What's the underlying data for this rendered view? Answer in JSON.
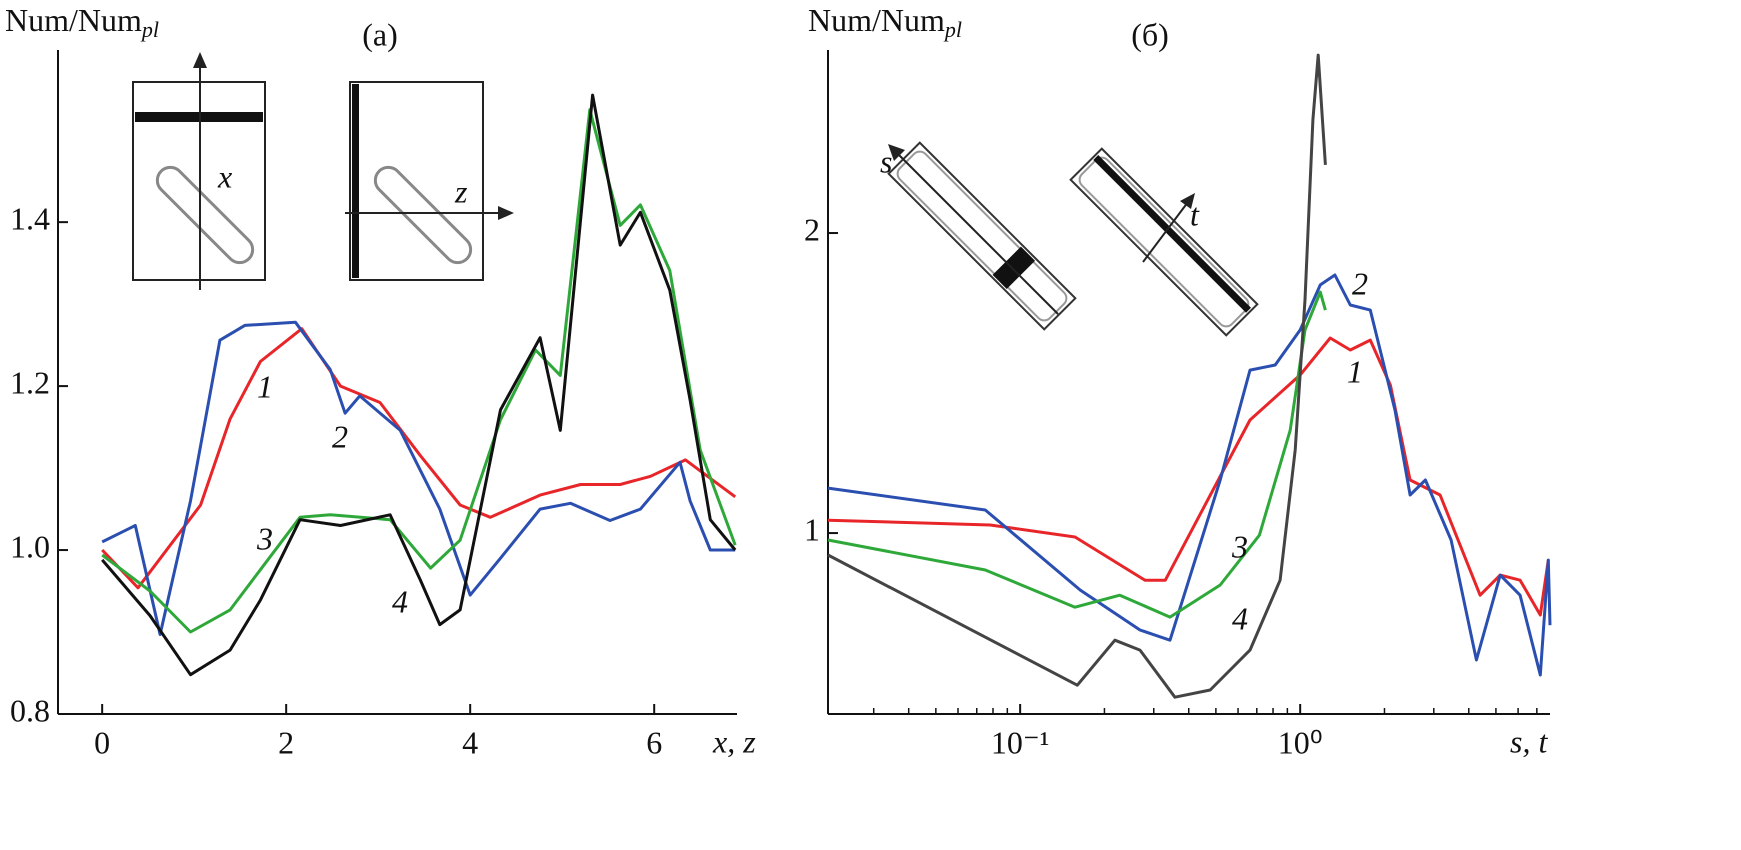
{
  "chart_data": [
    {
      "type": "line",
      "title": "(a)",
      "y_label": "Num/Num",
      "y_label_sub": "pl",
      "x_label": "x, z",
      "xlim": [
        -0.48,
        6.9
      ],
      "ylim": [
        0.8,
        1.61
      ],
      "xticks": [
        0,
        2,
        4,
        6
      ],
      "yticks": [
        0.8,
        {
          "value": 1,
          "label": "1.0"
        },
        1.2,
        1.4
      ],
      "inset_labels": [
        "x",
        "z"
      ],
      "series": [
        {
          "name": "1",
          "color": "#e8262a",
          "x": [
            0,
            0.39,
            1.07,
            1.39,
            1.72,
            2.17,
            2.59,
            3.02,
            3.46,
            3.89,
            4.22,
            4.76,
            5.2,
            5.63,
            5.96,
            6.34,
            6.88
          ],
          "values": [
            1.0,
            0.954,
            1.055,
            1.16,
            1.23,
            1.27,
            1.2,
            1.18,
            1.115,
            1.055,
            1.04,
            1.067,
            1.08,
            1.08,
            1.09,
            1.11,
            1.065
          ]
        },
        {
          "name": "2",
          "color": "#2b4fb0",
          "x": [
            0,
            0.36,
            0.63,
            0.96,
            1.28,
            1.55,
            2.1,
            2.48,
            2.64,
            2.8,
            3.24,
            3.67,
            4.0,
            4.33,
            4.76,
            5.09,
            5.52,
            5.85,
            6.28,
            6.39,
            6.61,
            6.88
          ],
          "values": [
            1.01,
            1.03,
            0.897,
            1.06,
            1.256,
            1.274,
            1.278,
            1.22,
            1.167,
            1.188,
            1.146,
            1.05,
            0.945,
            0.99,
            1.05,
            1.057,
            1.036,
            1.05,
            1.107,
            1.06,
            1.0,
            1.0
          ]
        },
        {
          "name": "3",
          "color": "#2fa83a",
          "x": [
            0,
            0.52,
            0.96,
            1.39,
            1.72,
            2.15,
            2.48,
            3.13,
            3.57,
            3.89,
            4.33,
            4.71,
            4.98,
            5.3,
            5.63,
            5.85,
            6.17,
            6.5,
            6.88
          ],
          "values": [
            0.994,
            0.95,
            0.9,
            0.927,
            0.976,
            1.04,
            1.043,
            1.037,
            0.978,
            1.012,
            1.159,
            1.244,
            1.213,
            1.537,
            1.396,
            1.421,
            1.341,
            1.122,
            1.006
          ]
        },
        {
          "name": "4",
          "color": "#111111",
          "x": [
            0,
            0.52,
            0.96,
            1.39,
            1.72,
            2.15,
            2.59,
            3.13,
            3.46,
            3.67,
            3.89,
            4.33,
            4.76,
            4.98,
            5.33,
            5.63,
            5.85,
            6.17,
            6.39,
            6.61,
            6.88
          ],
          "values": [
            0.988,
            0.92,
            0.848,
            0.878,
            0.939,
            1.037,
            1.03,
            1.043,
            0.963,
            0.909,
            0.927,
            1.171,
            1.259,
            1.146,
            1.555,
            1.372,
            1.412,
            1.317,
            1.183,
            1.037,
            1.0
          ]
        }
      ]
    },
    {
      "type": "line",
      "title": "(б)",
      "y_label": "Num/Num",
      "y_label_sub": "pl",
      "x_label": "s, t",
      "xscale": "log",
      "xlim": [
        0.0206,
        7.8
      ],
      "ylim": [
        0.397,
        2.61
      ],
      "xticks": [
        {
          "value": 0.1,
          "label": "10⁻¹"
        },
        {
          "value": 1,
          "label": "10⁰"
        }
      ],
      "xticks_minor": [
        0.03,
        0.04,
        0.05,
        0.06,
        0.07,
        0.08,
        0.09,
        0.2,
        0.3,
        0.4,
        0.5,
        0.6,
        0.7,
        0.8,
        0.9,
        2,
        3,
        4,
        5,
        6,
        7
      ],
      "yticks": [
        1,
        2
      ],
      "inset_labels": [
        "s",
        "t"
      ],
      "series": [
        {
          "name": "1",
          "color": "#e8262a",
          "x": [
            0.0206,
            0.0782,
            0.157,
            0.279,
            0.33,
            0.662,
            1.0,
            1.28,
            1.51,
            1.78,
            2.1,
            2.47,
            3.16,
            4.39,
            5.18,
            6.1,
            7.2,
            7.69
          ],
          "values": [
            1.043,
            1.027,
            0.987,
            0.843,
            0.843,
            1.377,
            1.527,
            1.65,
            1.61,
            1.643,
            1.493,
            1.177,
            1.127,
            0.793,
            0.86,
            0.843,
            0.727,
            0.91
          ]
        },
        {
          "name": "2",
          "color": "#2b4fb0",
          "x": [
            0.0206,
            0.0751,
            0.164,
            0.268,
            0.343,
            0.518,
            0.662,
            0.814,
            1.0,
            1.18,
            1.33,
            1.51,
            1.78,
            2.18,
            2.47,
            2.8,
            3.46,
            4.26,
            5.18,
            6.1,
            7.2,
            7.69,
            7.8
          ],
          "values": [
            1.15,
            1.077,
            0.81,
            0.677,
            0.643,
            1.177,
            1.543,
            1.56,
            1.677,
            1.827,
            1.86,
            1.76,
            1.743,
            1.41,
            1.127,
            1.177,
            0.977,
            0.577,
            0.86,
            0.793,
            0.527,
            0.91,
            0.693
          ]
        },
        {
          "name": "3",
          "color": "#2fa83a",
          "x": [
            0.0206,
            0.0751,
            0.157,
            0.227,
            0.343,
            0.518,
            0.715,
            0.921,
            1.04,
            1.18,
            1.23
          ],
          "values": [
            0.977,
            0.877,
            0.753,
            0.793,
            0.72,
            0.827,
            0.993,
            1.343,
            1.677,
            1.803,
            1.743
          ]
        },
        {
          "name": "4",
          "color": "#444444",
          "x": [
            0.0206,
            0.16,
            0.218,
            0.268,
            0.357,
            0.477,
            0.662,
            0.848,
            0.96,
            1.04,
            1.11,
            1.16,
            1.23
          ],
          "values": [
            0.927,
            0.493,
            0.643,
            0.61,
            0.453,
            0.477,
            0.61,
            0.843,
            1.277,
            1.777,
            2.377,
            2.593,
            2.227
          ]
        }
      ]
    }
  ]
}
